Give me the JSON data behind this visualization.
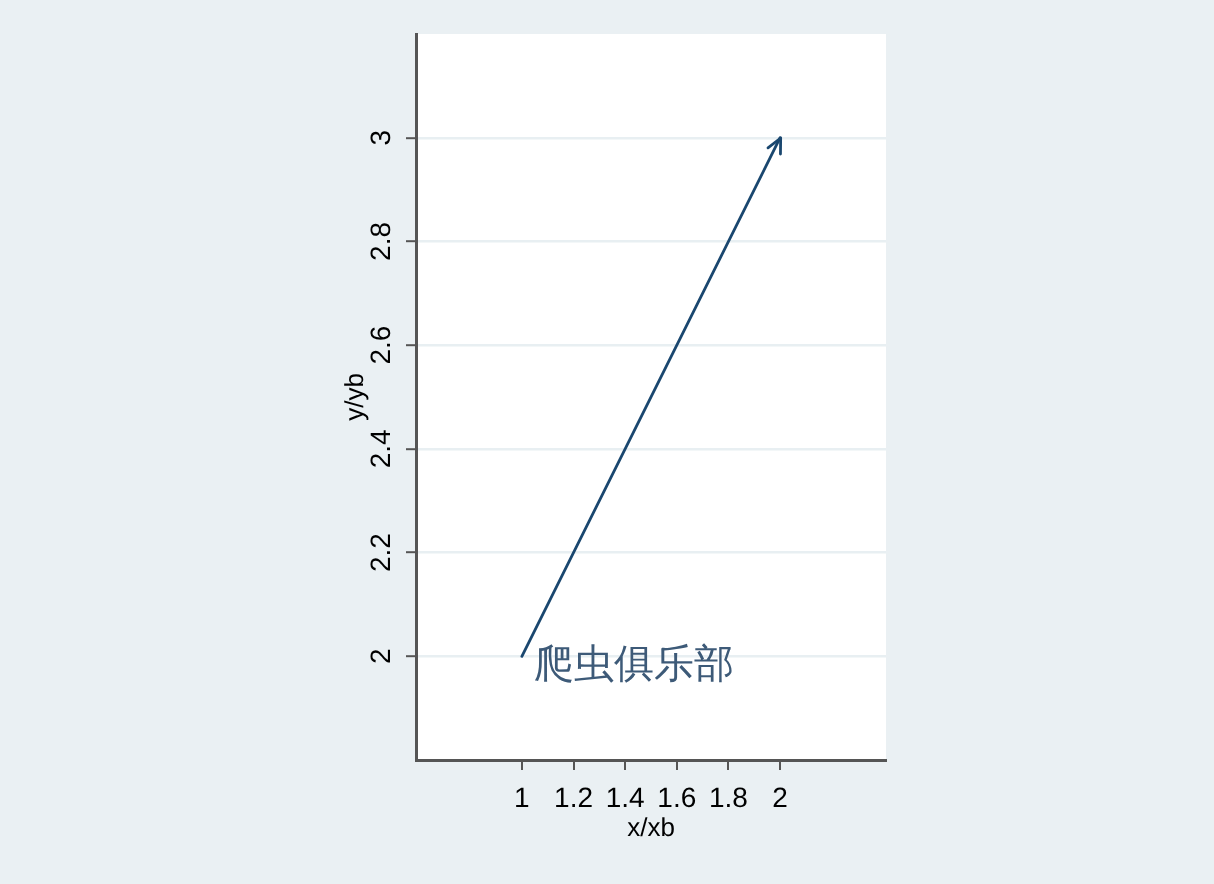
{
  "chart_data": {
    "type": "line",
    "xlabel": "x/xb",
    "ylabel": "y/yb",
    "x": [
      1,
      2
    ],
    "series": [
      {
        "color": "#1a476f",
        "values": [
          2,
          3
        ]
      }
    ],
    "xlim": [
      0.59,
      2.41
    ],
    "ylim": [
      1.8,
      3.2
    ],
    "xticks": [
      1,
      1.2,
      1.4,
      1.6,
      1.8,
      2
    ],
    "yticks": [
      2,
      2.2,
      2.4,
      2.6,
      2.8,
      3
    ],
    "grid": "y",
    "marker": "none",
    "line_style": "solid",
    "annotations": [
      {
        "text": "爬虫俱乐部",
        "x": 1,
        "y": 2
      }
    ]
  }
}
